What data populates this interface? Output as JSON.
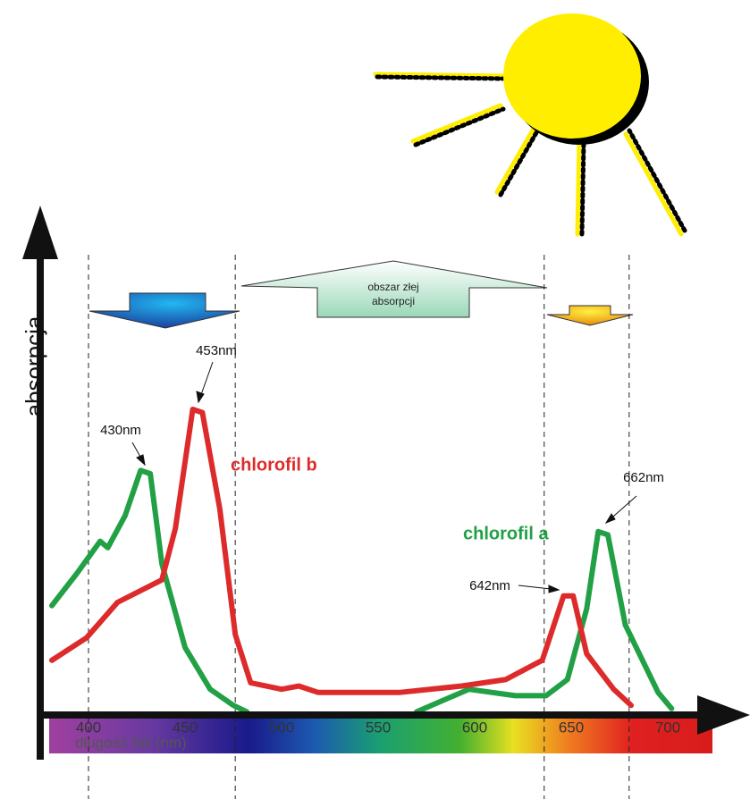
{
  "chart_data": {
    "type": "line",
    "y_label": "absorpcja",
    "x_label": "długość fali (nm)",
    "xlim": [
      375,
      725
    ],
    "ylim": [
      0,
      100
    ],
    "xticks": [
      400,
      450,
      500,
      550,
      600,
      650,
      700
    ],
    "guide_lines": [
      400,
      476,
      636,
      680
    ],
    "region_label": [
      "obszar złej",
      "absorpcji"
    ],
    "annotations": [
      "453nm",
      "430nm",
      "662nm",
      "642nm"
    ],
    "series": [
      {
        "name": "chlorofil b",
        "color": "#dd2b2b",
        "x": [
          381,
          399,
          415,
          438,
          445,
          454,
          459,
          468,
          476,
          484,
          500,
          509,
          519,
          561,
          593,
          616,
          635,
          646,
          651,
          658,
          672,
          681
        ],
        "values": [
          17,
          24,
          35,
          42,
          58,
          95,
          94,
          64,
          25,
          10,
          8,
          9,
          7,
          7,
          9,
          11,
          17,
          37,
          37,
          19,
          8,
          3
        ]
      },
      {
        "name": "chlorofil a",
        "color": "#22a045",
        "x": [
          381,
          394,
          406,
          410,
          419,
          427,
          432,
          438,
          450,
          463,
          475,
          482,
          526,
          570,
          597,
          621,
          637,
          648,
          658,
          664,
          669,
          678,
          695,
          702
        ],
        "values": [
          34,
          44,
          54,
          52,
          62,
          76,
          75,
          47,
          21,
          8,
          3,
          1,
          null,
          1,
          8,
          6,
          6,
          11,
          33,
          57,
          56,
          28,
          7,
          2
        ]
      }
    ]
  }
}
